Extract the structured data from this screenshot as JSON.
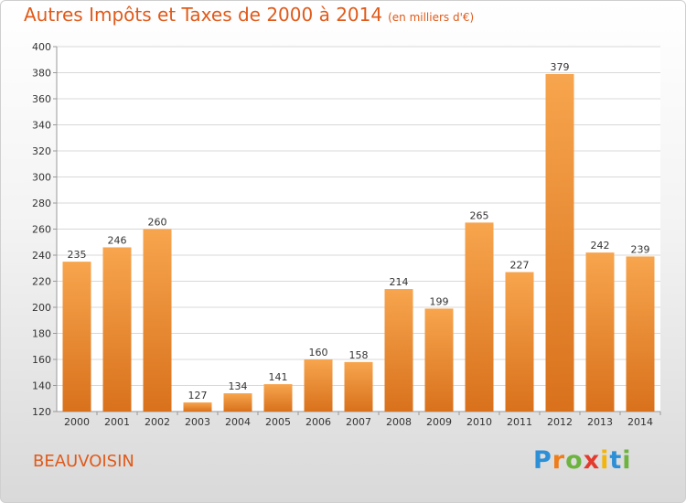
{
  "title": "Autres Impôts et Taxes de 2000 à 2014",
  "subtitle": "(en milliers d'€)",
  "location": "BEAUVOISIN",
  "logo": {
    "letters": [
      "P",
      "r",
      "o",
      "x",
      "i",
      "t",
      "i"
    ],
    "colors": [
      "#2d8fd6",
      "#ef7d1a",
      "#6db33f",
      "#e23b2e",
      "#f3b50a",
      "#2d8fd6",
      "#6db33f"
    ]
  },
  "colors": {
    "bar_light": "#f7a54e",
    "bar_dark": "#d9711c",
    "grid": "#d8d8d8",
    "text": "#333333",
    "accent": "#e05a1a"
  },
  "chart_data": {
    "type": "bar",
    "title": "Autres Impôts et Taxes de 2000 à 2014",
    "subtitle": "(en milliers d'€)",
    "xlabel": "",
    "ylabel": "",
    "categories": [
      "2000",
      "2001",
      "2002",
      "2003",
      "2004",
      "2005",
      "2006",
      "2007",
      "2008",
      "2009",
      "2010",
      "2011",
      "2012",
      "2013",
      "2014"
    ],
    "values": [
      235,
      246,
      260,
      127,
      134,
      141,
      160,
      158,
      214,
      199,
      265,
      227,
      379,
      242,
      239
    ],
    "ylim": [
      120,
      400
    ],
    "yticks": [
      120,
      140,
      160,
      180,
      200,
      220,
      240,
      260,
      280,
      300,
      320,
      340,
      360,
      380,
      400
    ],
    "grid": true,
    "data_labels": true
  }
}
